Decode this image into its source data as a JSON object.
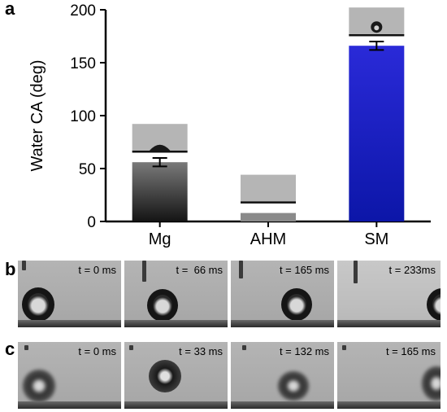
{
  "panels": {
    "a": "a",
    "b": "b",
    "c": "c"
  },
  "chart_data": {
    "type": "bar",
    "categories": [
      "Mg",
      "AHM",
      "SM"
    ],
    "values": [
      56,
      8,
      166
    ],
    "errors": [
      4,
      0.5,
      4
    ],
    "ylabel": "Water CA (deg)",
    "ylim": [
      0,
      200
    ],
    "yticks": [
      0,
      50,
      100,
      150,
      200
    ],
    "bar_colors": [
      [
        "#7a7a7a",
        "#141414"
      ],
      [
        "#8a8a8a",
        "#8a8a8a"
      ],
      [
        "#2a2ad8",
        "#0c16a8"
      ]
    ],
    "grid": false,
    "legend": "none"
  },
  "sequence_b": {
    "times": [
      "t = 0 ms",
      "t =  66 ms",
      "t = 165 ms",
      "t = 233ms"
    ]
  },
  "sequence_c": {
    "times": [
      "t = 0 ms",
      "t = 33 ms",
      "t = 132 ms",
      "t = 165 ms"
    ]
  },
  "colors": {
    "axis": "#000000",
    "photo_bg": "#b0b0b0"
  }
}
